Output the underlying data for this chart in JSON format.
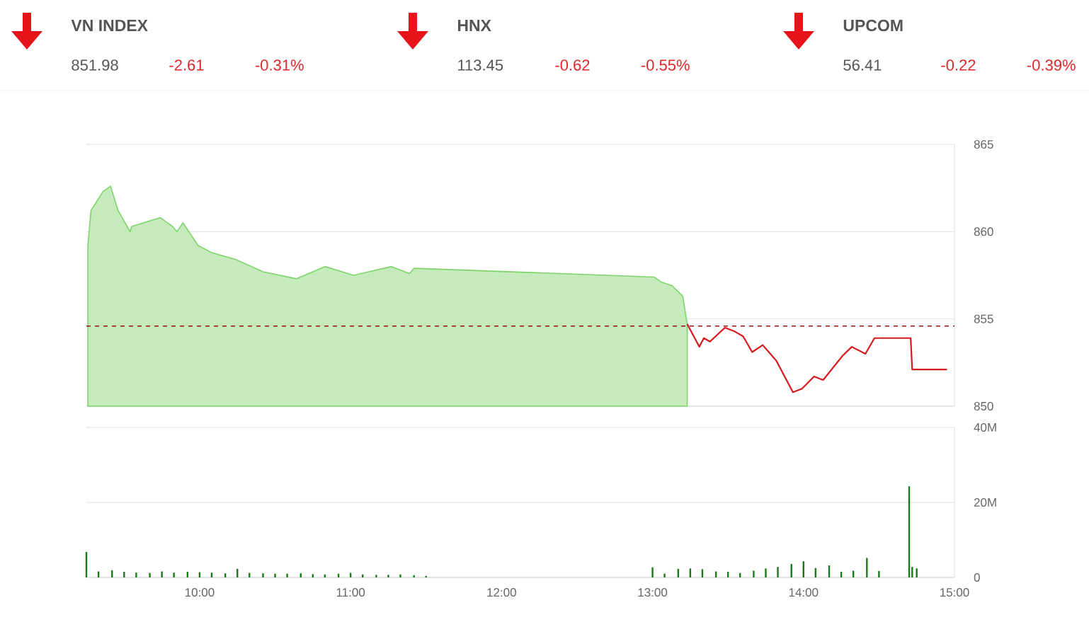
{
  "chart_data": [
    {
      "type": "other",
      "categories": [
        "VN INDEX",
        "HNX",
        "UPCOM"
      ],
      "data_labels": true,
      "series": [
        {
          "color": "#555555",
          "values": [
            851.98,
            113.45,
            56.41
          ]
        },
        {
          "color": "#e0262a",
          "values": [
            -2.61,
            -0.62,
            -0.22
          ]
        },
        {
          "color": "#e0262a",
          "values": [
            -0.31,
            -0.55,
            -0.39
          ],
          "value_labels": [
            "-0.31%",
            "-0.55%",
            "-0.39%"
          ]
        }
      ]
    },
    {
      "type": "line",
      "xlim": [
        9.25,
        15
      ],
      "ylim": [
        850,
        865
      ],
      "yticks": [
        850,
        855,
        860,
        865
      ],
      "grid": "y",
      "tick_labels": "y",
      "x": [
        9.26,
        9.28,
        9.36,
        9.41,
        9.46,
        9.54,
        9.55,
        9.74,
        9.82,
        9.85,
        9.89,
        9.99,
        10.08,
        10.24,
        10.42,
        10.64,
        10.83,
        11.02,
        11.27,
        11.39,
        11.42,
        13.01,
        13.06,
        13.13,
        13.2,
        13.23,
        13.31,
        13.34,
        13.38,
        13.48,
        13.54,
        13.6,
        13.66,
        13.73,
        13.82,
        13.93,
        13.99,
        14.07,
        14.13,
        14.26,
        14.32,
        14.41,
        14.47,
        14.71,
        14.72,
        14.95
      ],
      "series": [
        {
          "type": "area",
          "color": "#7fd36b",
          "values": [
            859.2,
            861.2,
            862.3,
            862.6,
            861.2,
            860.0,
            860.3,
            860.8,
            860.3,
            860.0,
            860.5,
            859.2,
            858.8,
            858.4,
            857.7,
            857.3,
            858.0,
            857.5,
            858.0,
            857.6,
            857.9,
            857.4,
            857.1,
            856.9,
            856.3,
            854.7,
            null,
            null,
            null,
            null,
            null,
            null,
            null,
            null,
            null,
            null,
            null,
            null,
            null,
            null,
            null,
            null,
            null,
            null,
            null,
            null
          ]
        },
        {
          "type": "line",
          "color": "#d7191c",
          "values": [
            null,
            null,
            null,
            null,
            null,
            null,
            null,
            null,
            null,
            null,
            null,
            null,
            null,
            null,
            null,
            null,
            null,
            null,
            null,
            null,
            null,
            null,
            null,
            null,
            null,
            854.7,
            853.4,
            853.9,
            853.7,
            854.5,
            854.3,
            854.0,
            853.1,
            853.5,
            852.6,
            850.8,
            851.0,
            851.7,
            851.5,
            852.9,
            853.4,
            853.0,
            853.9,
            853.9,
            852.1,
            852.1
          ]
        }
      ],
      "ref_lines": [
        {
          "axis": "y",
          "value": 854.59,
          "color": "#a01010",
          "line_style": "dashed"
        }
      ]
    },
    {
      "type": "bar",
      "xlim": [
        9.25,
        15
      ],
      "ylim": [
        0,
        40
      ],
      "grid": "y",
      "xticks": [
        {
          "value": 10,
          "label": "10:00"
        },
        {
          "value": 11,
          "label": "11:00"
        },
        {
          "value": 12,
          "label": "12:00"
        },
        {
          "value": 13,
          "label": "13:00"
        },
        {
          "value": 14,
          "label": "14:00"
        },
        {
          "value": 15,
          "label": "15:00"
        }
      ],
      "yticks": [
        0,
        {
          "value": 20,
          "label": "20M"
        },
        {
          "value": 40,
          "label": "40M"
        }
      ],
      "x": [
        9.25,
        9.33,
        9.42,
        9.5,
        9.58,
        9.67,
        9.75,
        9.83,
        9.92,
        10.0,
        10.08,
        10.17,
        10.25,
        10.33,
        10.42,
        10.5,
        10.58,
        10.67,
        10.75,
        10.83,
        10.92,
        11.0,
        11.08,
        11.17,
        11.25,
        11.33,
        11.42,
        11.5,
        13.0,
        13.08,
        13.17,
        13.25,
        13.33,
        13.42,
        13.5,
        13.58,
        13.67,
        13.75,
        13.83,
        13.92,
        14.0,
        14.08,
        14.17,
        14.25,
        14.33,
        14.42,
        14.5,
        14.7,
        14.72,
        14.75
      ],
      "series": [
        {
          "color": "#1a7a1a",
          "values": [
            6.8,
            1.6,
            1.9,
            1.5,
            1.3,
            1.2,
            1.6,
            1.3,
            1.5,
            1.4,
            1.3,
            1.1,
            2.3,
            1.2,
            1.1,
            1.0,
            1.0,
            1.1,
            0.9,
            0.8,
            1.0,
            1.2,
            0.8,
            0.7,
            0.7,
            0.8,
            0.6,
            0.4,
            2.7,
            1.0,
            2.3,
            2.4,
            2.2,
            1.6,
            1.5,
            1.2,
            1.8,
            2.4,
            2.8,
            3.6,
            4.3,
            2.5,
            3.2,
            1.5,
            1.8,
            5.2,
            1.7,
            24.3,
            2.8,
            2.4
          ]
        }
      ]
    }
  ]
}
